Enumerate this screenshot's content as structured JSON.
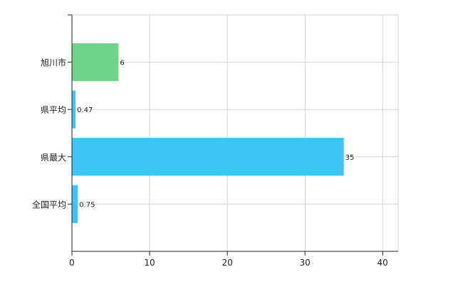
{
  "chart_data": {
    "type": "bar",
    "orientation": "horizontal",
    "categories": [
      "旭川市",
      "県平均",
      "県最大",
      "全国平均"
    ],
    "values": [
      6,
      0.47,
      35,
      0.75
    ],
    "value_labels": [
      "6",
      "0.47",
      "35",
      "0.75"
    ],
    "bar_colors": [
      "#6fd48a",
      "#3ec5f5",
      "#3ec5f5",
      "#3ec5f5"
    ],
    "xlim": [
      0,
      42
    ],
    "xticks": [
      0,
      10,
      20,
      30,
      40
    ],
    "xtick_labels": [
      "0",
      "10",
      "20",
      "30",
      "40"
    ],
    "grid": true,
    "legend": "none",
    "title": "",
    "xlabel": "",
    "ylabel": ""
  }
}
